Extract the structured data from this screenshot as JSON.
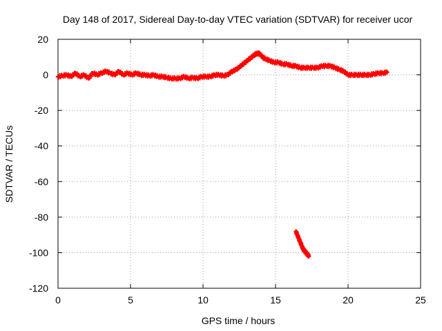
{
  "chart_data": {
    "type": "scatter",
    "title": "Day 148 of 2017, Sidereal Day-to-day VTEC variation (SDTVAR) for receiver ucor",
    "xlabel": "GPS time / hours",
    "ylabel": "SDTVAR / TECUs",
    "xlim": [
      0,
      25
    ],
    "ylim": [
      -120,
      20
    ],
    "xticks": [
      "0",
      "5",
      "10",
      "15",
      "20",
      "25"
    ],
    "yticks": [
      "20",
      "0",
      "-20",
      "-40",
      "-60",
      "-80",
      "-100",
      "-120"
    ],
    "grid": true,
    "marker": "plus",
    "color": "#ff0000",
    "series": [
      {
        "name": "SDTVAR",
        "x": [
          0.0,
          0.3,
          0.6,
          0.9,
          1.2,
          1.5,
          1.8,
          2.1,
          2.4,
          2.7,
          3.0,
          3.3,
          3.6,
          3.9,
          4.2,
          4.5,
          4.8,
          5.1,
          5.4,
          5.7,
          6.0,
          6.3,
          6.6,
          6.9,
          7.2,
          7.5,
          7.8,
          8.1,
          8.4,
          8.7,
          9.0,
          9.3,
          9.6,
          9.9,
          10.2,
          10.5,
          10.8,
          11.1,
          11.4,
          11.7,
          12.0,
          12.3,
          12.6,
          12.9,
          13.2,
          13.5,
          13.7,
          13.9,
          14.1,
          14.3,
          14.6,
          14.9,
          15.2,
          15.5,
          15.8,
          16.1,
          16.4,
          16.7,
          17.0,
          17.3,
          17.6,
          17.9,
          18.2,
          18.5,
          18.8,
          19.1,
          19.4,
          19.7,
          20.0,
          20.3,
          20.6,
          20.9,
          21.2,
          21.5,
          21.8,
          22.1,
          22.4,
          22.7,
          16.4,
          16.5,
          16.6,
          16.7,
          16.8,
          16.9,
          17.0,
          17.1,
          17.2,
          17.3
        ],
        "y": [
          -1,
          -0.5,
          0,
          -1,
          1,
          -1,
          0,
          -2,
          1,
          0,
          1,
          2,
          1,
          0,
          2,
          0,
          1,
          0,
          1,
          0,
          0,
          -0.5,
          0,
          -1,
          -1,
          -1.5,
          -2,
          -2,
          -2,
          -1,
          -2,
          -1.5,
          -2,
          -1,
          -1,
          -1,
          0,
          0,
          -0.5,
          0,
          2,
          3,
          5,
          7,
          9,
          11,
          12,
          12,
          10,
          9,
          8,
          7,
          7,
          6,
          6,
          5,
          5,
          4,
          4,
          4,
          4,
          4,
          5,
          5,
          5,
          4,
          3,
          2,
          0,
          0,
          0,
          0,
          0,
          0,
          0.5,
          1,
          1,
          1.5,
          -88,
          -90,
          -92,
          -94,
          -96,
          -98,
          -99,
          -100,
          -101,
          -102
        ]
      }
    ]
  }
}
